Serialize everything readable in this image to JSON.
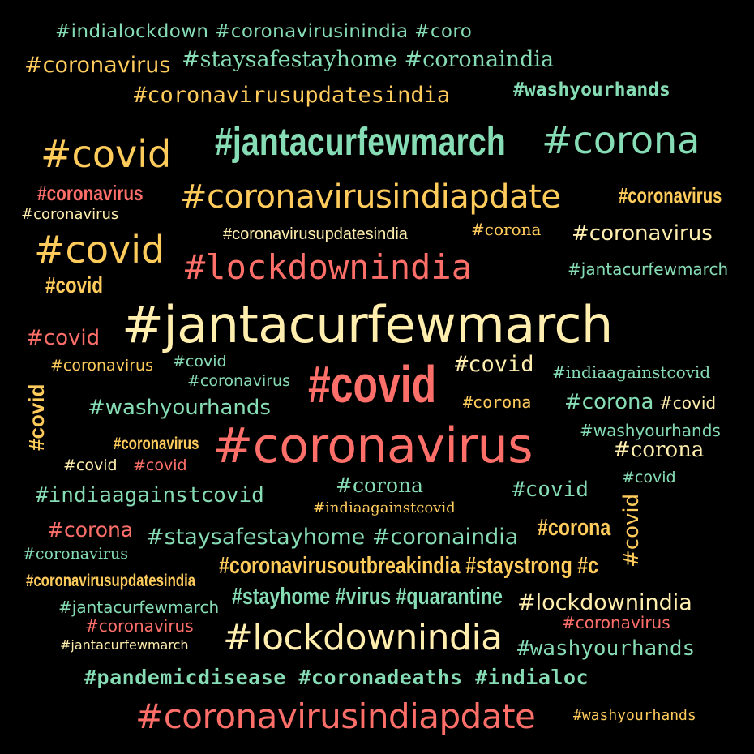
{
  "colors": {
    "background": "#000000",
    "teal": "#86dcb4",
    "yellow": "#ffcc5c",
    "cream": "#ffeead",
    "coral": "#ff6f69"
  },
  "words": [
    {
      "text": "#indialockdown #coronavirusinindia #coro",
      "color": "teal"
    },
    {
      "text": "#coronavirus",
      "color": "yellow"
    },
    {
      "text": "#staysafestayhome #coronaindia",
      "color": "teal"
    },
    {
      "text": "#coronavirusupdatesindia",
      "color": "yellow"
    },
    {
      "text": "#washyourhands",
      "color": "teal"
    },
    {
      "text": "#covid",
      "color": "yellow"
    },
    {
      "text": "#jantacurfewmarch",
      "color": "teal"
    },
    {
      "text": "#corona",
      "color": "teal"
    },
    {
      "text": "#coronavirus",
      "color": "coral"
    },
    {
      "text": "#coronavirusindiapdate",
      "color": "yellow"
    },
    {
      "text": "#coronavirus",
      "color": "yellow"
    },
    {
      "text": "#coronavirus",
      "color": "cream"
    },
    {
      "text": "#coronavirusupdatesindia",
      "color": "cream"
    },
    {
      "text": "#corona",
      "color": "yellow"
    },
    {
      "text": "#coronavirus",
      "color": "cream"
    },
    {
      "text": "#covid",
      "color": "yellow"
    },
    {
      "text": "#lockdownindia",
      "color": "coral"
    },
    {
      "text": "#jantacurfewmarch",
      "color": "teal"
    },
    {
      "text": "#covid",
      "color": "yellow"
    },
    {
      "text": "#jantacurfewmarch",
      "color": "cream"
    },
    {
      "text": "#covid",
      "color": "coral"
    },
    {
      "text": "#covid",
      "color": "yellow"
    },
    {
      "text": "#coronavirus",
      "color": "yellow"
    },
    {
      "text": "#covid",
      "color": "teal"
    },
    {
      "text": "#covid",
      "color": "cream"
    },
    {
      "text": "#indiaagainstcovid",
      "color": "teal"
    },
    {
      "text": "#coronavirus",
      "color": "teal"
    },
    {
      "text": "#covid",
      "color": "coral"
    },
    {
      "text": "#washyourhands",
      "color": "teal"
    },
    {
      "text": "#corona",
      "color": "yellow"
    },
    {
      "text": "#corona",
      "color": "teal"
    },
    {
      "text": "#covid",
      "color": "cream"
    },
    {
      "text": "#washyourhands",
      "color": "teal"
    },
    {
      "text": "#coronavirus",
      "color": "yellow"
    },
    {
      "text": "#coronavirus",
      "color": "coral"
    },
    {
      "text": "#corona",
      "color": "cream"
    },
    {
      "text": "#covid",
      "color": "cream"
    },
    {
      "text": "#covid",
      "color": "coral"
    },
    {
      "text": "#covid",
      "color": "teal"
    },
    {
      "text": "#indiaagainstcovid",
      "color": "teal"
    },
    {
      "text": "#corona",
      "color": "teal"
    },
    {
      "text": "#covid",
      "color": "teal"
    },
    {
      "text": "#indiaagainstcovid",
      "color": "yellow"
    },
    {
      "text": "#covid",
      "color": "yellow"
    },
    {
      "text": "#corona",
      "color": "coral"
    },
    {
      "text": "#staysafestayhome #coronaindia",
      "color": "teal"
    },
    {
      "text": "#corona",
      "color": "yellow"
    },
    {
      "text": "#coronavirus",
      "color": "teal"
    },
    {
      "text": "#coronavirusoutbreakindia #staystrong #c",
      "color": "yellow"
    },
    {
      "text": "#coronavirusupdatesindia",
      "color": "yellow"
    },
    {
      "text": "#jantacurfewmarch",
      "color": "teal"
    },
    {
      "text": "#stayhome #virus #quarantine",
      "color": "teal"
    },
    {
      "text": "#lockdownindia",
      "color": "cream"
    },
    {
      "text": "#coronavirus",
      "color": "coral"
    },
    {
      "text": "#coronavirus",
      "color": "coral"
    },
    {
      "text": "#jantacurfewmarch",
      "color": "cream"
    },
    {
      "text": "#lockdownindia",
      "color": "cream"
    },
    {
      "text": "#washyourhands",
      "color": "teal"
    },
    {
      "text": "#pandemicdisease #coronadeaths #indialoc",
      "color": "teal"
    },
    {
      "text": "#coronavirusindiapdate",
      "color": "coral"
    },
    {
      "text": "#washyourhands",
      "color": "yellow"
    }
  ]
}
